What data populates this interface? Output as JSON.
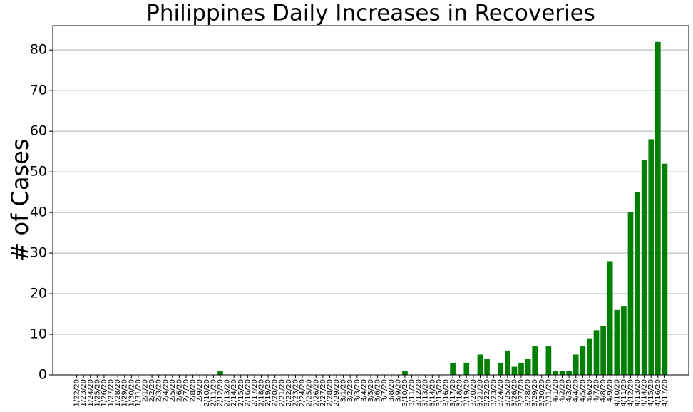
{
  "chart_data": {
    "type": "bar",
    "title": "Philippines Daily Increases in Recoveries",
    "ylabel": "# of Cases",
    "color": "#008000",
    "grid": true,
    "ylim": [
      0,
      86
    ],
    "yticks": [
      0,
      10,
      20,
      30,
      40,
      50,
      60,
      70,
      80
    ],
    "categories": [
      "1/22/20",
      "1/23/20",
      "1/24/20",
      "1/25/20",
      "1/26/20",
      "1/27/20",
      "1/28/20",
      "1/29/20",
      "1/30/20",
      "1/31/20",
      "2/1/20",
      "2/2/20",
      "2/3/20",
      "2/4/20",
      "2/5/20",
      "2/6/20",
      "2/7/20",
      "2/8/20",
      "2/9/20",
      "2/10/20",
      "2/11/20",
      "2/12/20",
      "2/13/20",
      "2/14/20",
      "2/15/20",
      "2/16/20",
      "2/17/20",
      "2/18/20",
      "2/19/20",
      "2/20/20",
      "2/21/20",
      "2/22/20",
      "2/23/20",
      "2/24/20",
      "2/25/20",
      "2/26/20",
      "2/27/20",
      "2/28/20",
      "2/29/20",
      "3/1/20",
      "3/2/20",
      "3/3/20",
      "3/4/20",
      "3/5/20",
      "3/6/20",
      "3/7/20",
      "3/8/20",
      "3/9/20",
      "3/10/20",
      "3/11/20",
      "3/12/20",
      "3/13/20",
      "3/14/20",
      "3/15/20",
      "3/16/20",
      "3/17/20",
      "3/18/20",
      "3/19/20",
      "3/20/20",
      "3/21/20",
      "3/22/20",
      "3/23/20",
      "3/24/20",
      "3/25/20",
      "3/26/20",
      "3/27/20",
      "3/28/20",
      "3/29/20",
      "3/30/20",
      "3/31/20",
      "4/1/20",
      "4/2/20",
      "4/3/20",
      "4/4/20",
      "4/5/20",
      "4/6/20",
      "4/7/20",
      "4/8/20",
      "4/9/20",
      "4/10/20",
      "4/11/20",
      "4/12/20",
      "4/13/20",
      "4/14/20",
      "4/15/20",
      "4/16/20",
      "4/17/20"
    ],
    "values": [
      0,
      0,
      0,
      0,
      0,
      0,
      0,
      0,
      0,
      0,
      0,
      0,
      0,
      0,
      0,
      0,
      0,
      0,
      0,
      0,
      0,
      1,
      0,
      0,
      0,
      0,
      0,
      0,
      0,
      0,
      0,
      0,
      0,
      0,
      0,
      0,
      0,
      0,
      0,
      0,
      0,
      0,
      0,
      0,
      0,
      0,
      0,
      0,
      1,
      0,
      0,
      0,
      0,
      0,
      0,
      3,
      0,
      3,
      0,
      5,
      4,
      0,
      3,
      6,
      2,
      3,
      4,
      7,
      0,
      7,
      1,
      1,
      1,
      5,
      7,
      9,
      11,
      12,
      28,
      16,
      17,
      40,
      45,
      53,
      58,
      82,
      52
    ]
  }
}
